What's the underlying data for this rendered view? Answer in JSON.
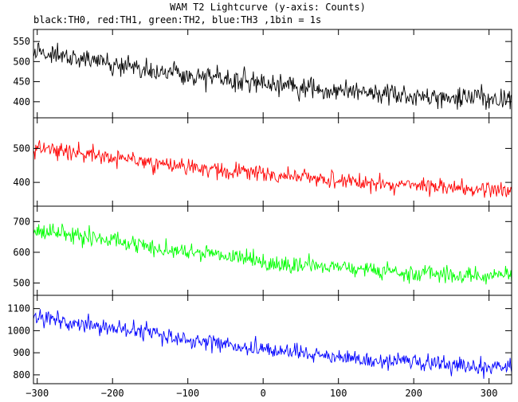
{
  "chart_data": {
    "type": "line",
    "title": "WAM T2 Lightcurve (y-axis: Counts)",
    "subtitle": "black:TH0, red:TH1, green:TH2, blue:TH3 ,1bin = 1s",
    "xlim": [
      -305,
      330
    ],
    "x_ticks": [
      -300,
      -200,
      -100,
      0,
      100,
      200,
      300
    ],
    "x_tick_labels": [
      "−300",
      "−200",
      "−100",
      "0",
      "100",
      "200",
      "300"
    ],
    "x_step": 1,
    "grid": false,
    "panels": [
      {
        "name": "TH0",
        "color": "#000000",
        "ylim": [
          360,
          580
        ],
        "y_ticks": [
          400,
          450,
          500,
          550
        ],
        "y_tick_labels": [
          "400",
          "450",
          "500",
          "550"
        ],
        "trend": [
          [
            -305,
            525
          ],
          [
            -100,
            465
          ],
          [
            0,
            445
          ],
          [
            100,
            425
          ],
          [
            200,
            415
          ],
          [
            330,
            405
          ]
        ],
        "noise": 25
      },
      {
        "name": "TH1",
        "color": "#ff0000",
        "ylim": [
          330,
          590
        ],
        "y_ticks": [
          400,
          500
        ],
        "y_tick_labels": [
          "400",
          "500"
        ],
        "trend": [
          [
            -305,
            505
          ],
          [
            -100,
            445
          ],
          [
            0,
            425
          ],
          [
            100,
            405
          ],
          [
            200,
            390
          ],
          [
            330,
            375
          ]
        ],
        "noise": 22
      },
      {
        "name": "TH2",
        "color": "#00ff00",
        "ylim": [
          460,
          750
        ],
        "y_ticks": [
          500,
          600,
          700
        ],
        "y_tick_labels": [
          "500",
          "600",
          "700"
        ],
        "trend": [
          [
            -305,
            670
          ],
          [
            -100,
            605
          ],
          [
            0,
            570
          ],
          [
            100,
            550
          ],
          [
            200,
            530
          ],
          [
            330,
            525
          ]
        ],
        "noise": 25
      },
      {
        "name": "TH3",
        "color": "#0000ff",
        "ylim": [
          760,
          1160
        ],
        "y_ticks": [
          800,
          900,
          1000,
          1100
        ],
        "y_tick_labels": [
          "800",
          "900",
          "1000",
          "1100"
        ],
        "trend": [
          [
            -305,
            1060
          ],
          [
            -200,
            1015
          ],
          [
            -100,
            960
          ],
          [
            0,
            915
          ],
          [
            100,
            880
          ],
          [
            200,
            855
          ],
          [
            330,
            830
          ]
        ],
        "noise": 35
      }
    ]
  }
}
